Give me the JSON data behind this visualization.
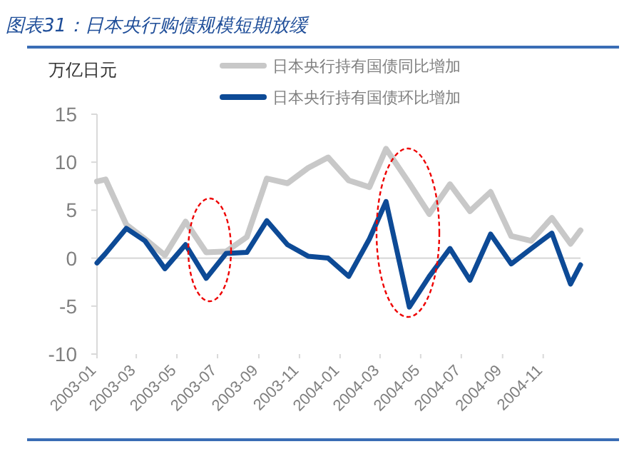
{
  "chart_data": {
    "type": "line",
    "title": "图表31：日本央行购债规模短期放缓",
    "ylabel": "万亿日元",
    "x": [
      "2003-01-01",
      "2003-01-14",
      "2003-02-14",
      "2003-03-14",
      "2003-04-13",
      "2003-05-14",
      "2003-06-14",
      "2003-07-14",
      "2003-08-14",
      "2003-09-13",
      "2003-10-14",
      "2003-11-14",
      "2003-12-14",
      "2004-01-14",
      "2004-02-14",
      "2004-03-10",
      "2004-04-14",
      "2004-05-14",
      "2004-06-14",
      "2004-07-14",
      "2004-08-14",
      "2004-09-14",
      "2004-10-14",
      "2004-11-14",
      "2004-12-12",
      "2004-12-27"
    ],
    "series": [
      {
        "name": "日本央行持有国债同比增加",
        "color": "#c8c8c8",
        "values": [
          8.0,
          8.2,
          3.5,
          2.0,
          0.3,
          3.8,
          0.6,
          0.7,
          2.2,
          8.3,
          7.8,
          9.4,
          10.5,
          8.1,
          7.4,
          11.4,
          7.8,
          4.6,
          7.7,
          4.9,
          6.9,
          2.3,
          1.8,
          4.2,
          1.5,
          2.9
        ]
      },
      {
        "name": "日本央行持有国债环比增加",
        "color": "#0d4a96",
        "values": [
          -0.5,
          0.5,
          3.1,
          1.8,
          -1.1,
          1.4,
          -2.1,
          0.5,
          0.6,
          3.9,
          1.4,
          0.2,
          0.0,
          -1.9,
          2.0,
          5.9,
          -5.1,
          -1.9,
          1.0,
          -2.3,
          2.5,
          -0.6,
          1.0,
          2.6,
          -2.7,
          -0.7
        ]
      }
    ],
    "ylim": [
      -10,
      15
    ],
    "yticks": [
      -10,
      -5,
      0,
      5,
      10,
      15
    ],
    "xlim": [
      "2003-01-01",
      "2004-12-27"
    ],
    "xticks": [
      "2003-01",
      "2003-03",
      "2003-05",
      "2003-07",
      "2003-09",
      "2003-11",
      "2004-01",
      "2004-03",
      "2004-05",
      "2004-07",
      "2004-09",
      "2004-11"
    ],
    "ref_lines": [
      {
        "axis": "y",
        "value": 0,
        "color": "#d9d9d9"
      }
    ],
    "legend": "top",
    "grid": false,
    "marker": "none",
    "line_style": "solid"
  }
}
